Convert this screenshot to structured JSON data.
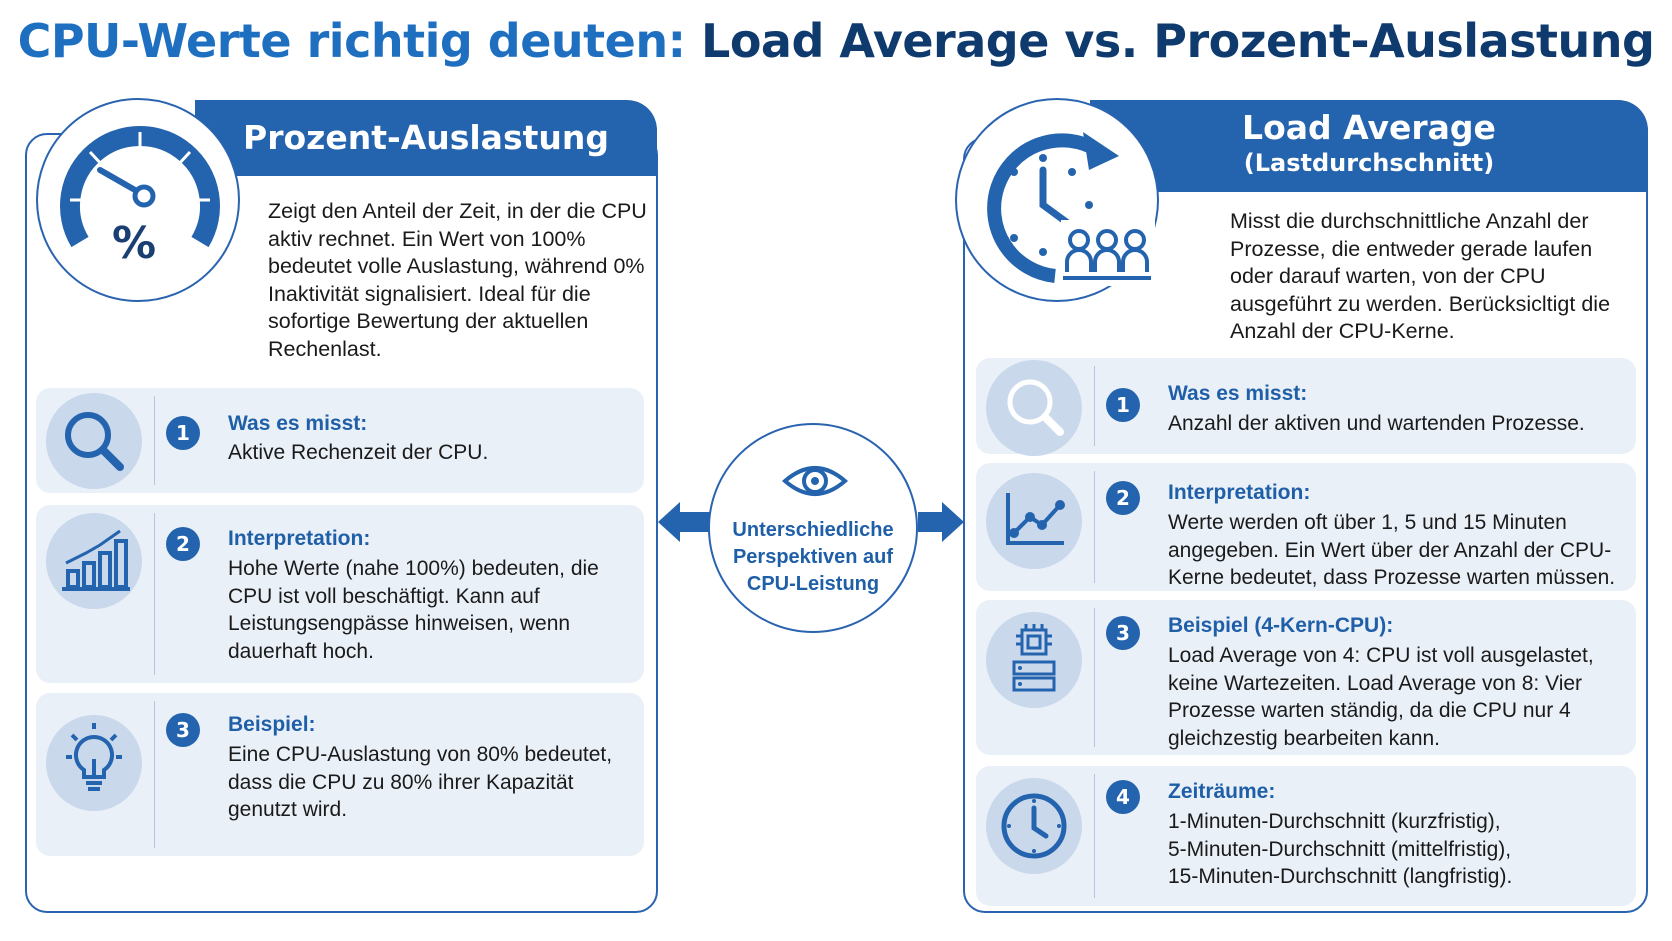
{
  "title": {
    "part1": "CPU-Werte richtig deuten:",
    "part2": "Load Average vs. Prozent-Auslastung"
  },
  "left": {
    "header": "Prozent-Auslastung",
    "badge_icon": "gauge-percent-icon",
    "badge_symbol": "%",
    "intro": "Zeigt den Anteil der Zeit, in der die CPU aktiv rechnet. Ein Wert von 100% bedeutet volle Auslastung, während 0% Inaktivität signalisiert. Ideal für die sofortige Bewertung der aktuellen Rechenlast.",
    "cards": [
      {
        "number": "1",
        "icon": "magnifier-icon",
        "title": "Was es misst:",
        "text": "Aktive Rechenzeit der CPU."
      },
      {
        "number": "2",
        "icon": "bar-chart-icon",
        "title": "Interpretation:",
        "text": "Hohe Werte (nahe 100%) bedeuten, die CPU ist voll beschäftigt. Kann auf Leistungsengpässe hinweisen, wenn dauerhaft hoch."
      },
      {
        "number": "3",
        "icon": "lightbulb-icon",
        "title": "Beispiel:",
        "text": "Eine CPU-Auslastung von 80% bedeutet, dass die CPU zu 80% ihrer Kapazität genutzt wird."
      }
    ]
  },
  "center": {
    "icon": "eye-icon",
    "text": "Unterschiedliche Perspektiven auf CPU-Leistung"
  },
  "right": {
    "header": "Load Average",
    "subheader": "(Lastdurchschnitt)",
    "badge_icon": "clock-people-icon",
    "intro": "Misst die durchschnittliche Anzahl der Prozesse, die entweder gerade laufen oder darauf warten, von der CPU ausgeführt zu werden. Berücksicltigt die Anzahl der CPU-Kerne.",
    "cards": [
      {
        "number": "1",
        "icon": "magnifier-icon",
        "title": "Was es misst:",
        "text": "Anzahl der aktiven und wartenden Prozesse."
      },
      {
        "number": "2",
        "icon": "line-chart-icon",
        "title": "Interpretation:",
        "text": "Werte werden oft über 1, 5 und 15 Minuten angegeben. Ein Wert über der Anzahl der CPU-Kerne bedeutet, dass Prozesse warten müssen."
      },
      {
        "number": "3",
        "icon": "cpu-server-icon",
        "title": "Beispiel (4-Kern-CPU):",
        "text": "Load Average von 4: CPU ist voll ausgelastet, keine Wartezeiten. Load Average von 8: Vier Prozesse warten ständig, da die CPU nur 4 gleichzestig bearbeiten kann."
      },
      {
        "number": "4",
        "icon": "clock-icon",
        "title": "Zeiträume:",
        "lines": [
          "1-Minuten-Durchschnitt (kurzfristig),",
          "5-Minuten-Durchschnitt (mittelfristig),",
          "15-Minuten-Durchschnitt (langfristig)."
        ]
      }
    ]
  },
  "colors": {
    "primary": "#2463ad",
    "title_light": "#1f6fc0",
    "title_dark": "#0e3a6e",
    "card_bg": "#eaf0f8",
    "icon_bg": "#cad8ec"
  }
}
